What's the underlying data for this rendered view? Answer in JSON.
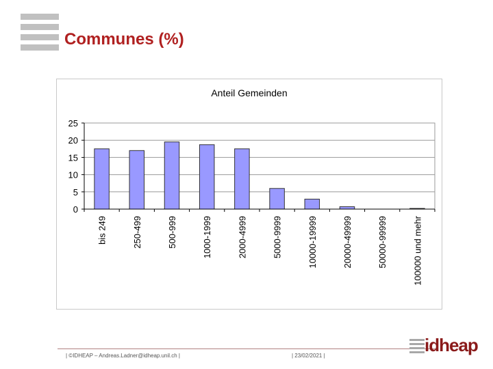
{
  "slide": {
    "title": "Communes (%)",
    "footer_left": "| ©IDHEAP – Andreas.Ladner@idheap.unil.ch |",
    "footer_date": "| 23/02/2021 |",
    "logo_text": "idheap"
  },
  "colors": {
    "title": "#b02020",
    "bar_fill": "#9999ff",
    "bar_stroke": "#333333",
    "grid": "#999999",
    "plot_bg": "#ffffff"
  },
  "chart_data": {
    "type": "bar",
    "title": "Anteil Gemeinden",
    "xlabel": "",
    "ylabel": "",
    "ylim": [
      0,
      25
    ],
    "yticks": [
      0,
      5,
      10,
      15,
      20,
      25
    ],
    "grid": true,
    "categories": [
      "bis 249",
      "250-499",
      "500-999",
      "1000-1999",
      "2000-4999",
      "5000-9999",
      "10000-19999",
      "20000-49999",
      "50000-99999",
      "100000 und mehr"
    ],
    "values": [
      17.5,
      17.0,
      19.5,
      18.7,
      17.5,
      6.0,
      2.9,
      0.7,
      0.0,
      0.2
    ]
  }
}
